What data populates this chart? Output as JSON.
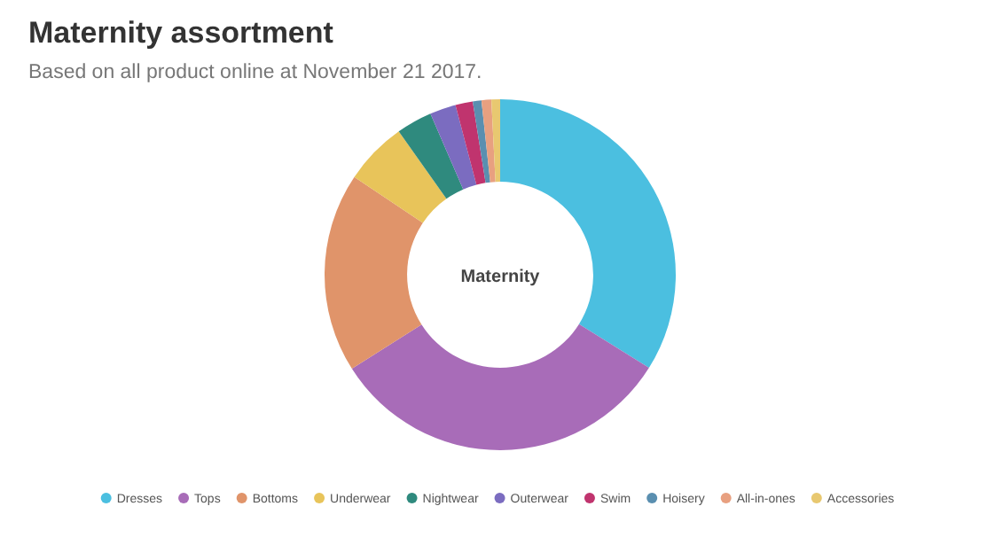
{
  "chart_data": {
    "type": "donut",
    "title": "Maternity assortment",
    "subtitle": "Based on all product online at November 21 2017.",
    "annotations": [
      "Maternity"
    ],
    "categories": [
      "Dresses",
      "Tops",
      "Bottoms",
      "Underwear",
      "Nightwear",
      "Outerwear",
      "Swim",
      "Hoisery",
      "All-in-ones",
      "Accessories"
    ],
    "values": [
      33.9,
      32.1,
      18.4,
      5.8,
      3.3,
      2.4,
      1.6,
      0.8,
      0.9,
      0.8
    ],
    "colors": [
      "#4bbfe0",
      "#a86cb8",
      "#e0946a",
      "#e8c45a",
      "#2f8a7e",
      "#7b6cc0",
      "#c0346e",
      "#5a8fb0",
      "#e8a080",
      "#e8c870"
    ],
    "legend": "bottom"
  }
}
